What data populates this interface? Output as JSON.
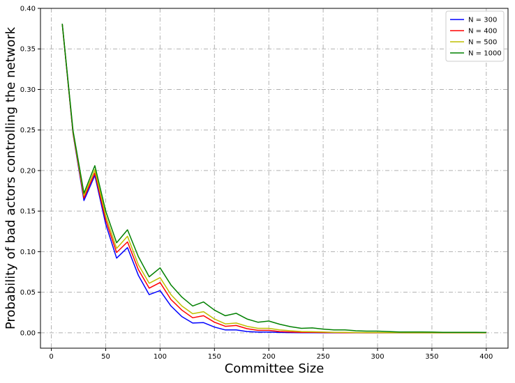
{
  "chart_data": {
    "type": "line",
    "title": "",
    "xlabel": "Committee Size",
    "ylabel": "Probability of bad actors controlling the network",
    "xlim": [
      -10,
      420
    ],
    "ylim": [
      -0.019,
      0.4
    ],
    "xticks": [
      0,
      50,
      100,
      150,
      200,
      250,
      300,
      350,
      400
    ],
    "yticks": [
      0.0,
      0.05,
      0.1,
      0.15,
      0.2,
      0.25,
      0.3,
      0.35,
      0.4
    ],
    "xtick_labels": [
      "0",
      "50",
      "100",
      "150",
      "200",
      "250",
      "300",
      "350",
      "400"
    ],
    "ytick_labels": [
      "0.00",
      "0.05",
      "0.10",
      "0.15",
      "0.20",
      "0.25",
      "0.30",
      "0.35",
      "0.40"
    ],
    "grid": true,
    "legend_position": "top-right",
    "x": [
      10,
      20,
      30,
      40,
      50,
      60,
      70,
      80,
      90,
      100,
      110,
      120,
      130,
      140,
      150,
      160,
      170,
      180,
      190,
      200,
      210,
      220,
      230,
      240,
      250,
      260,
      270,
      280,
      290,
      300,
      310,
      320,
      330,
      340,
      350,
      360,
      370,
      380,
      390,
      400
    ],
    "series": [
      {
        "name": "N = 300",
        "color": "#0000ff",
        "values": [
          0.381,
          0.245,
          0.163,
          0.194,
          0.134,
          0.092,
          0.105,
          0.071,
          0.047,
          0.052,
          0.033,
          0.02,
          0.012,
          0.0125,
          0.007,
          0.0035,
          0.0035,
          0.0015,
          0.0008,
          0.0008,
          0.0004,
          0.0002,
          0.0001,
          0.0001,
          0,
          0,
          0,
          0,
          0,
          0,
          0,
          0,
          0,
          0,
          0,
          0,
          0,
          0,
          0,
          0
        ]
      },
      {
        "name": "N = 400",
        "color": "#ff0000",
        "values": [
          0.381,
          0.246,
          0.166,
          0.197,
          0.139,
          0.099,
          0.112,
          0.078,
          0.055,
          0.062,
          0.041,
          0.028,
          0.0185,
          0.021,
          0.013,
          0.008,
          0.009,
          0.005,
          0.003,
          0.003,
          0.0015,
          0.001,
          0.0006,
          0.0005,
          0.0003,
          0.0002,
          0.0001,
          0.0001,
          0,
          0,
          0,
          0,
          0,
          0,
          0,
          0,
          0,
          0,
          0,
          0
        ]
      },
      {
        "name": "N = 500",
        "color": "#bfbf00",
        "values": [
          0.381,
          0.247,
          0.169,
          0.201,
          0.144,
          0.104,
          0.119,
          0.084,
          0.061,
          0.068,
          0.047,
          0.033,
          0.0235,
          0.026,
          0.017,
          0.011,
          0.012,
          0.008,
          0.0055,
          0.0055,
          0.0035,
          0.0025,
          0.0015,
          0.0013,
          0.0009,
          0.0006,
          0.0005,
          0.0003,
          0.0002,
          0.0002,
          0.0001,
          0.0001,
          0,
          0,
          0,
          0,
          0,
          0,
          0,
          0
        ]
      },
      {
        "name": "N = 1000",
        "color": "#008000",
        "values": [
          0.381,
          0.249,
          0.172,
          0.206,
          0.15,
          0.111,
          0.127,
          0.094,
          0.069,
          0.08,
          0.059,
          0.044,
          0.033,
          0.038,
          0.028,
          0.021,
          0.024,
          0.017,
          0.013,
          0.0145,
          0.0105,
          0.0075,
          0.0055,
          0.006,
          0.0045,
          0.0035,
          0.0035,
          0.0025,
          0.002,
          0.002,
          0.0015,
          0.001,
          0.001,
          0.001,
          0.0008,
          0.0006,
          0.0006,
          0.0005,
          0.0005,
          0.0004
        ]
      }
    ]
  }
}
